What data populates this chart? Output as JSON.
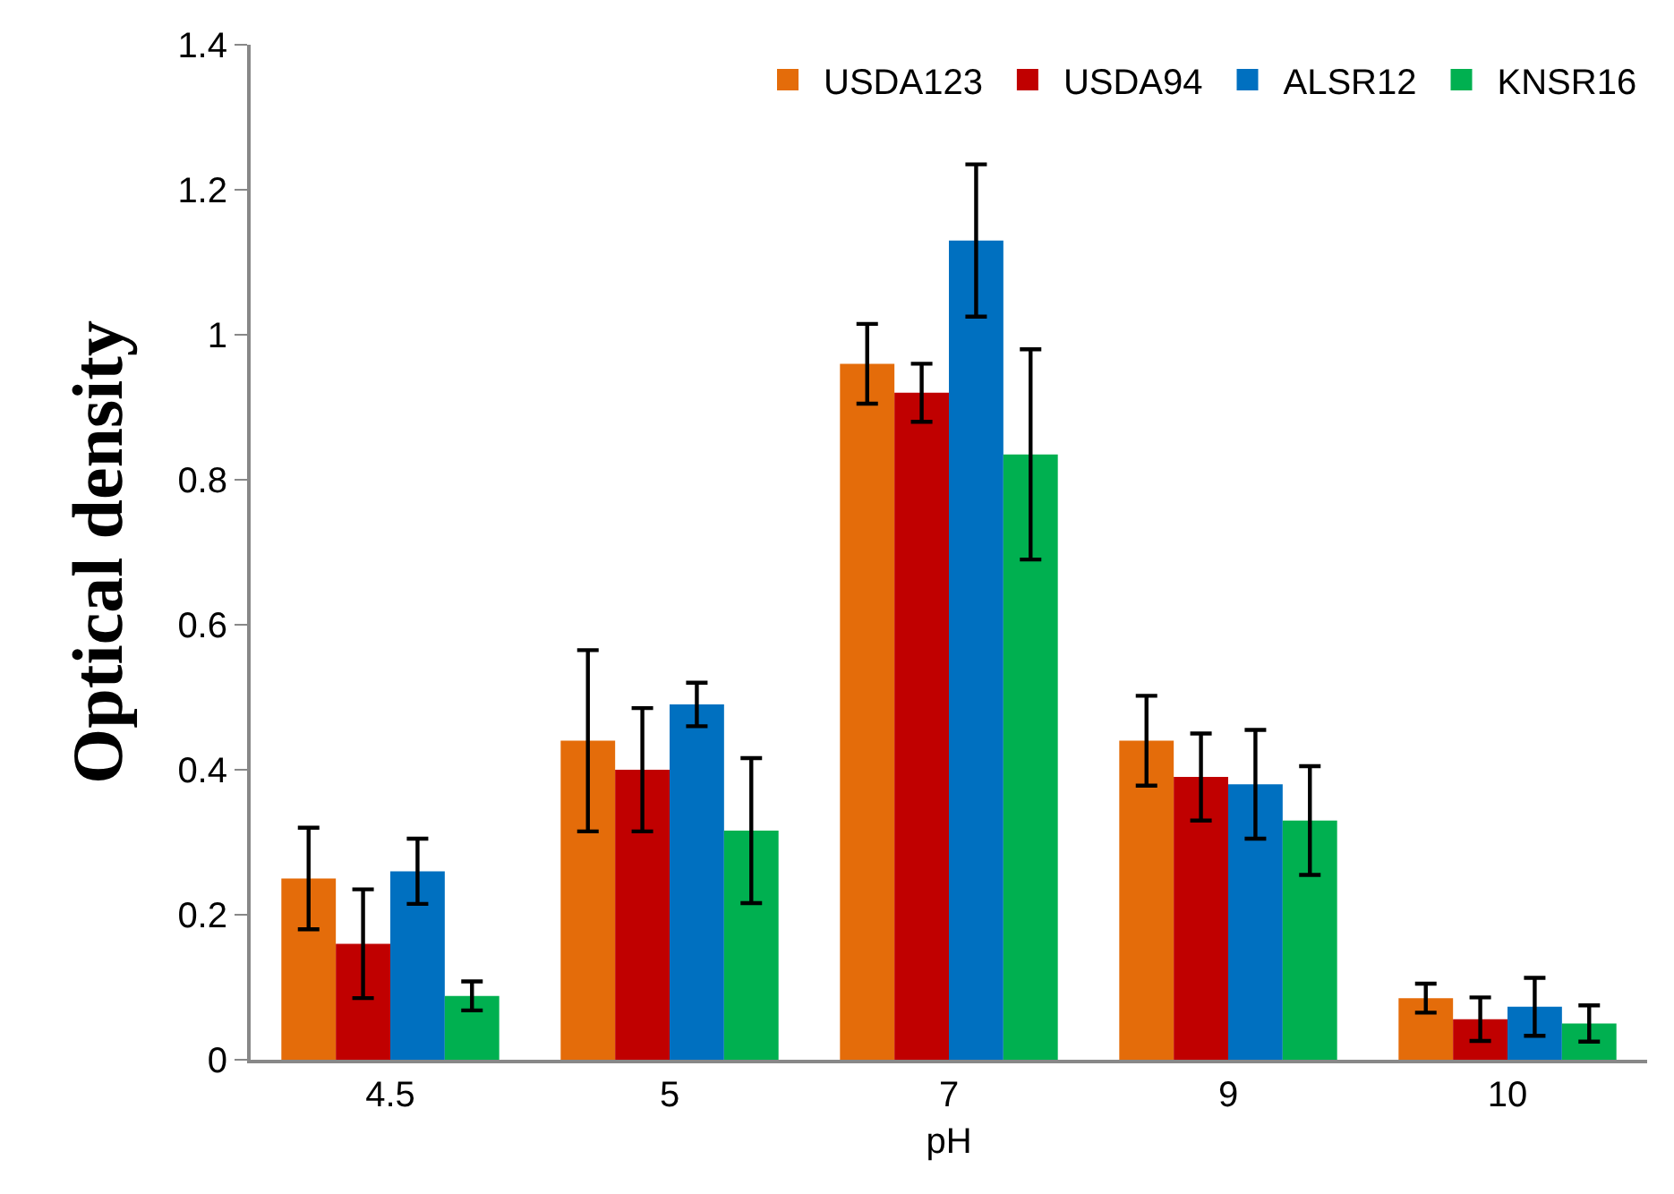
{
  "chart_data": {
    "type": "bar",
    "xlabel": "pH",
    "ylabel": "Optical density",
    "categories": [
      "4.5",
      "5",
      "7",
      "9",
      "10"
    ],
    "series": [
      {
        "name": "USDA123",
        "color": "#e46c0a",
        "values": [
          0.25,
          0.44,
          0.96,
          0.44,
          0.085
        ],
        "errors": [
          0.07,
          0.125,
          0.055,
          0.062,
          0.02
        ]
      },
      {
        "name": "USDA94",
        "color": "#c00000",
        "values": [
          0.16,
          0.4,
          0.92,
          0.39,
          0.056
        ],
        "errors": [
          0.075,
          0.085,
          0.04,
          0.06,
          0.03
        ]
      },
      {
        "name": "ALSR12",
        "color": "#0070c0",
        "values": [
          0.26,
          0.49,
          1.13,
          0.38,
          0.073
        ],
        "errors": [
          0.045,
          0.03,
          0.105,
          0.075,
          0.04
        ]
      },
      {
        "name": "KNSR16",
        "color": "#00b050",
        "values": [
          0.088,
          0.316,
          0.835,
          0.33,
          0.05
        ],
        "errors": [
          0.02,
          0.1,
          0.145,
          0.075,
          0.025
        ]
      }
    ],
    "ylim": [
      0,
      1.4
    ],
    "yticks": [
      0,
      0.2,
      0.4,
      0.6,
      0.8,
      1,
      1.2,
      1.4
    ],
    "grid": false,
    "legend": "top right"
  }
}
